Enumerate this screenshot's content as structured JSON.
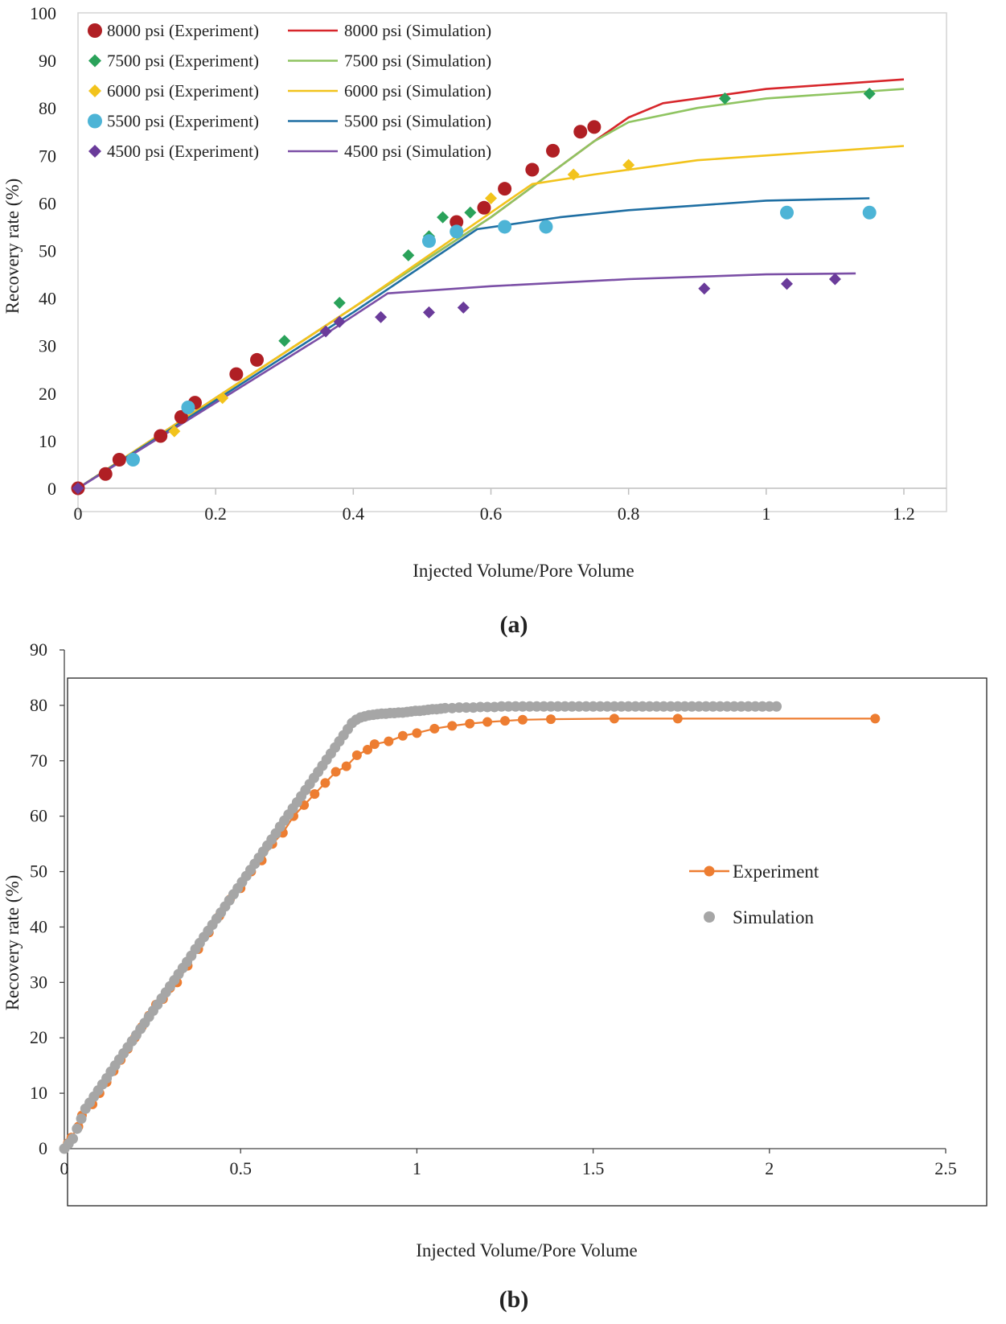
{
  "chart_data": [
    {
      "type": "scatter",
      "panel_label": "(a)",
      "xlabel": "Injected Volume/Pore Volume",
      "ylabel": "Recovery rate (%)",
      "xlim": [
        0,
        1.2
      ],
      "ylim": [
        0,
        100
      ],
      "xticks": [
        0,
        0.2,
        0.4,
        0.6,
        0.8,
        1,
        1.2
      ],
      "xtick_labels": [
        "0",
        "0.2",
        "0.4",
        "0.6",
        "0.8",
        "1",
        "1.2"
      ],
      "yticks": [
        0,
        10,
        20,
        30,
        40,
        50,
        60,
        70,
        80,
        90,
        100
      ],
      "ytick_labels": [
        "0",
        "10",
        "20",
        "30",
        "40",
        "50",
        "60",
        "70",
        "80",
        "90",
        "100"
      ],
      "legend_position": "top-left",
      "series": [
        {
          "name": "8000 psi (Experiment)",
          "kind": "marker",
          "marker": "circle",
          "color": "#b01f24",
          "x": [
            0,
            0.04,
            0.06,
            0.12,
            0.15,
            0.17,
            0.23,
            0.26,
            0.55,
            0.59,
            0.62,
            0.66,
            0.69,
            0.73,
            0.75
          ],
          "y": [
            0,
            3,
            6,
            11,
            15,
            18,
            24,
            27,
            56,
            59,
            63,
            67,
            71,
            75,
            76
          ]
        },
        {
          "name": "7500 psi (Experiment)",
          "kind": "marker",
          "marker": "diamond",
          "color": "#2aa25a",
          "x": [
            0.3,
            0.38,
            0.48,
            0.51,
            0.53,
            0.57,
            0.94,
            1.15
          ],
          "y": [
            31,
            39,
            49,
            53,
            57,
            58,
            82,
            83
          ]
        },
        {
          "name": "6000 psi (Experiment)",
          "kind": "marker",
          "marker": "diamond",
          "color": "#f2c31c",
          "x": [
            0.14,
            0.21,
            0.6,
            0.72,
            0.8
          ],
          "y": [
            12,
            19,
            61,
            66,
            68
          ]
        },
        {
          "name": "5500 psi (Experiment)",
          "kind": "marker",
          "marker": "circle",
          "color": "#4db4d6",
          "x": [
            0.08,
            0.16,
            0.51,
            0.55,
            0.62,
            0.68,
            1.03,
            1.15
          ],
          "y": [
            6,
            17,
            52,
            54,
            55,
            55,
            58,
            58
          ]
        },
        {
          "name": "4500 psi (Experiment)",
          "kind": "marker",
          "marker": "diamond",
          "color": "#6a3b9a",
          "x": [
            0,
            0.36,
            0.38,
            0.44,
            0.51,
            0.56,
            0.91,
            1.03,
            1.1
          ],
          "y": [
            0,
            33,
            35,
            36,
            37,
            38,
            42,
            43,
            44
          ]
        },
        {
          "name": "8000 psi (Simulation)",
          "kind": "line",
          "color": "#d7262b",
          "x": [
            0,
            0.2,
            0.4,
            0.6,
            0.75,
            0.8,
            0.85,
            0.9,
            1.0,
            1.1,
            1.2
          ],
          "y": [
            0,
            19,
            38,
            57,
            73,
            78,
            81,
            82,
            84,
            85,
            86
          ]
        },
        {
          "name": "7500 psi (Simulation)",
          "kind": "line",
          "color": "#8fc461",
          "x": [
            0,
            0.2,
            0.4,
            0.6,
            0.75,
            0.8,
            0.9,
            1.0,
            1.1,
            1.2
          ],
          "y": [
            0,
            19,
            38,
            57,
            73,
            77,
            80,
            82,
            83,
            84
          ]
        },
        {
          "name": "6000 psi (Simulation)",
          "kind": "line",
          "color": "#f2c31c",
          "x": [
            0,
            0.2,
            0.4,
            0.6,
            0.66,
            0.75,
            0.9,
            1.0,
            1.1,
            1.2
          ],
          "y": [
            0,
            19,
            38,
            58,
            64,
            66,
            69,
            70,
            71,
            72
          ]
        },
        {
          "name": "5500 psi (Simulation)",
          "kind": "line",
          "color": "#1f6fa3",
          "x": [
            0,
            0.2,
            0.4,
            0.58,
            0.7,
            0.8,
            0.9,
            1.0,
            1.15
          ],
          "y": [
            0,
            18.5,
            37,
            54.5,
            57,
            58.5,
            59.5,
            60.5,
            61
          ]
        },
        {
          "name": "4500 psi (Simulation)",
          "kind": "line",
          "color": "#7b4fa6",
          "x": [
            0,
            0.2,
            0.35,
            0.45,
            0.6,
            0.8,
            1.0,
            1.13
          ],
          "y": [
            0,
            18,
            31.5,
            41,
            42.5,
            44,
            45,
            45.2
          ]
        }
      ]
    },
    {
      "type": "line",
      "panel_label": "(b)",
      "xlabel": "Injected Volume/Pore Volume",
      "ylabel": "Recovery rate (%)",
      "xlim": [
        0,
        2.5
      ],
      "ylim": [
        0,
        90
      ],
      "xticks": [
        0,
        0.5,
        1,
        1.5,
        2,
        2.5
      ],
      "xtick_labels": [
        "0",
        "0.5",
        "1",
        "1.5",
        "2",
        "2.5"
      ],
      "yticks": [
        0,
        10,
        20,
        30,
        40,
        50,
        60,
        70,
        80,
        90
      ],
      "ytick_labels": [
        "0",
        "10",
        "20",
        "30",
        "40",
        "50",
        "60",
        "70",
        "80",
        "90"
      ],
      "legend_position": "right",
      "series": [
        {
          "name": "Experiment",
          "color": "#ed7d31",
          "style": "line-with-markers",
          "x": [
            0,
            0.01,
            0.02,
            0.04,
            0.05,
            0.08,
            0.1,
            0.12,
            0.14,
            0.16,
            0.18,
            0.2,
            0.22,
            0.24,
            0.26,
            0.28,
            0.3,
            0.32,
            0.35,
            0.38,
            0.41,
            0.44,
            0.47,
            0.5,
            0.53,
            0.56,
            0.59,
            0.62,
            0.65,
            0.68,
            0.71,
            0.74,
            0.77,
            0.8,
            0.83,
            0.86,
            0.88,
            0.92,
            0.96,
            1.0,
            1.05,
            1.1,
            1.15,
            1.2,
            1.25,
            1.3,
            1.38,
            1.56,
            1.74,
            2.3
          ],
          "y": [
            0,
            1,
            2,
            4,
            6,
            8,
            10,
            12,
            14,
            16,
            18,
            20,
            22,
            24,
            26,
            27,
            29,
            30,
            33,
            36,
            39,
            42,
            45,
            47,
            50,
            52,
            55,
            57,
            60,
            62,
            64,
            66,
            68,
            69,
            71,
            72,
            73,
            73.5,
            74.5,
            75,
            75.8,
            76.3,
            76.7,
            77,
            77.2,
            77.4,
            77.5,
            77.6,
            77.6,
            77.6
          ]
        },
        {
          "name": "Simulation",
          "color": "#a6a6a6",
          "style": "markers",
          "x": [
            0,
            0.012,
            0.024,
            0.036,
            0.048,
            0.06,
            0.072,
            0.084,
            0.096,
            0.108,
            0.12,
            0.132,
            0.144,
            0.156,
            0.168,
            0.18,
            0.192,
            0.204,
            0.216,
            0.228,
            0.24,
            0.252,
            0.264,
            0.276,
            0.288,
            0.3,
            0.312,
            0.324,
            0.336,
            0.348,
            0.36,
            0.372,
            0.384,
            0.396,
            0.408,
            0.42,
            0.432,
            0.444,
            0.456,
            0.468,
            0.48,
            0.492,
            0.504,
            0.516,
            0.528,
            0.54,
            0.552,
            0.564,
            0.576,
            0.588,
            0.6,
            0.612,
            0.624,
            0.636,
            0.648,
            0.66,
            0.672,
            0.684,
            0.696,
            0.708,
            0.72,
            0.732,
            0.744,
            0.756,
            0.768,
            0.78,
            0.792,
            0.804,
            0.816,
            0.828,
            0.84,
            0.852,
            0.864,
            0.876,
            0.888,
            0.9,
            0.912,
            0.924,
            0.936,
            0.948,
            0.96,
            0.972,
            0.984,
            0.996,
            1.008,
            1.02,
            1.032,
            1.044,
            1.056,
            1.068,
            1.08,
            1.1,
            1.12,
            1.14,
            1.16,
            1.18,
            1.2,
            1.22,
            1.24,
            1.26,
            1.28,
            1.3,
            1.32,
            1.34,
            1.36,
            1.38,
            1.4,
            1.42,
            1.44,
            1.46,
            1.48,
            1.5,
            1.52,
            1.54,
            1.56,
            1.58,
            1.6,
            1.62,
            1.64,
            1.66,
            1.68,
            1.7,
            1.72,
            1.74,
            1.76,
            1.78,
            1.8,
            1.82,
            1.84,
            1.86,
            1.88,
            1.9,
            1.92,
            1.94,
            1.96,
            1.98,
            2.0,
            2.02
          ],
          "y": [
            0,
            0.9,
            1.8,
            3.6,
            5.4,
            7.2,
            8.3,
            9.4,
            10.5,
            11.6,
            12.7,
            13.9,
            15.0,
            16.1,
            17.2,
            18.3,
            19.4,
            20.5,
            21.6,
            22.7,
            23.8,
            24.9,
            26.0,
            27.1,
            28.2,
            29.3,
            30.4,
            31.5,
            32.6,
            33.7,
            34.8,
            36.0,
            37.1,
            38.2,
            39.3,
            40.4,
            41.5,
            42.6,
            43.7,
            44.8,
            45.9,
            47.0,
            48.1,
            49.2,
            50.3,
            51.4,
            52.5,
            53.6,
            54.7,
            55.8,
            56.9,
            58.1,
            59.2,
            60.3,
            61.4,
            62.5,
            63.6,
            64.7,
            65.8,
            66.9,
            68.0,
            69.1,
            70.2,
            71.3,
            72.4,
            73.5,
            74.6,
            75.7,
            76.8,
            77.4,
            77.8,
            78.0,
            78.2,
            78.3,
            78.4,
            78.5,
            78.5,
            78.6,
            78.6,
            78.7,
            78.7,
            78.8,
            78.9,
            79.0,
            79.0,
            79.1,
            79.2,
            79.3,
            79.3,
            79.4,
            79.5,
            79.5,
            79.6,
            79.6,
            79.6,
            79.7,
            79.7,
            79.7,
            79.8,
            79.8,
            79.8,
            79.8,
            79.8,
            79.8,
            79.8,
            79.8,
            79.8,
            79.8,
            79.8,
            79.8,
            79.8,
            79.8,
            79.8,
            79.8,
            79.8,
            79.8,
            79.8,
            79.8,
            79.8,
            79.8,
            79.8,
            79.8,
            79.8,
            79.8,
            79.8,
            79.8,
            79.8,
            79.8,
            79.8,
            79.8,
            79.8,
            79.8,
            79.8,
            79.8,
            79.8,
            79.8,
            79.8,
            79.8
          ]
        }
      ]
    }
  ]
}
